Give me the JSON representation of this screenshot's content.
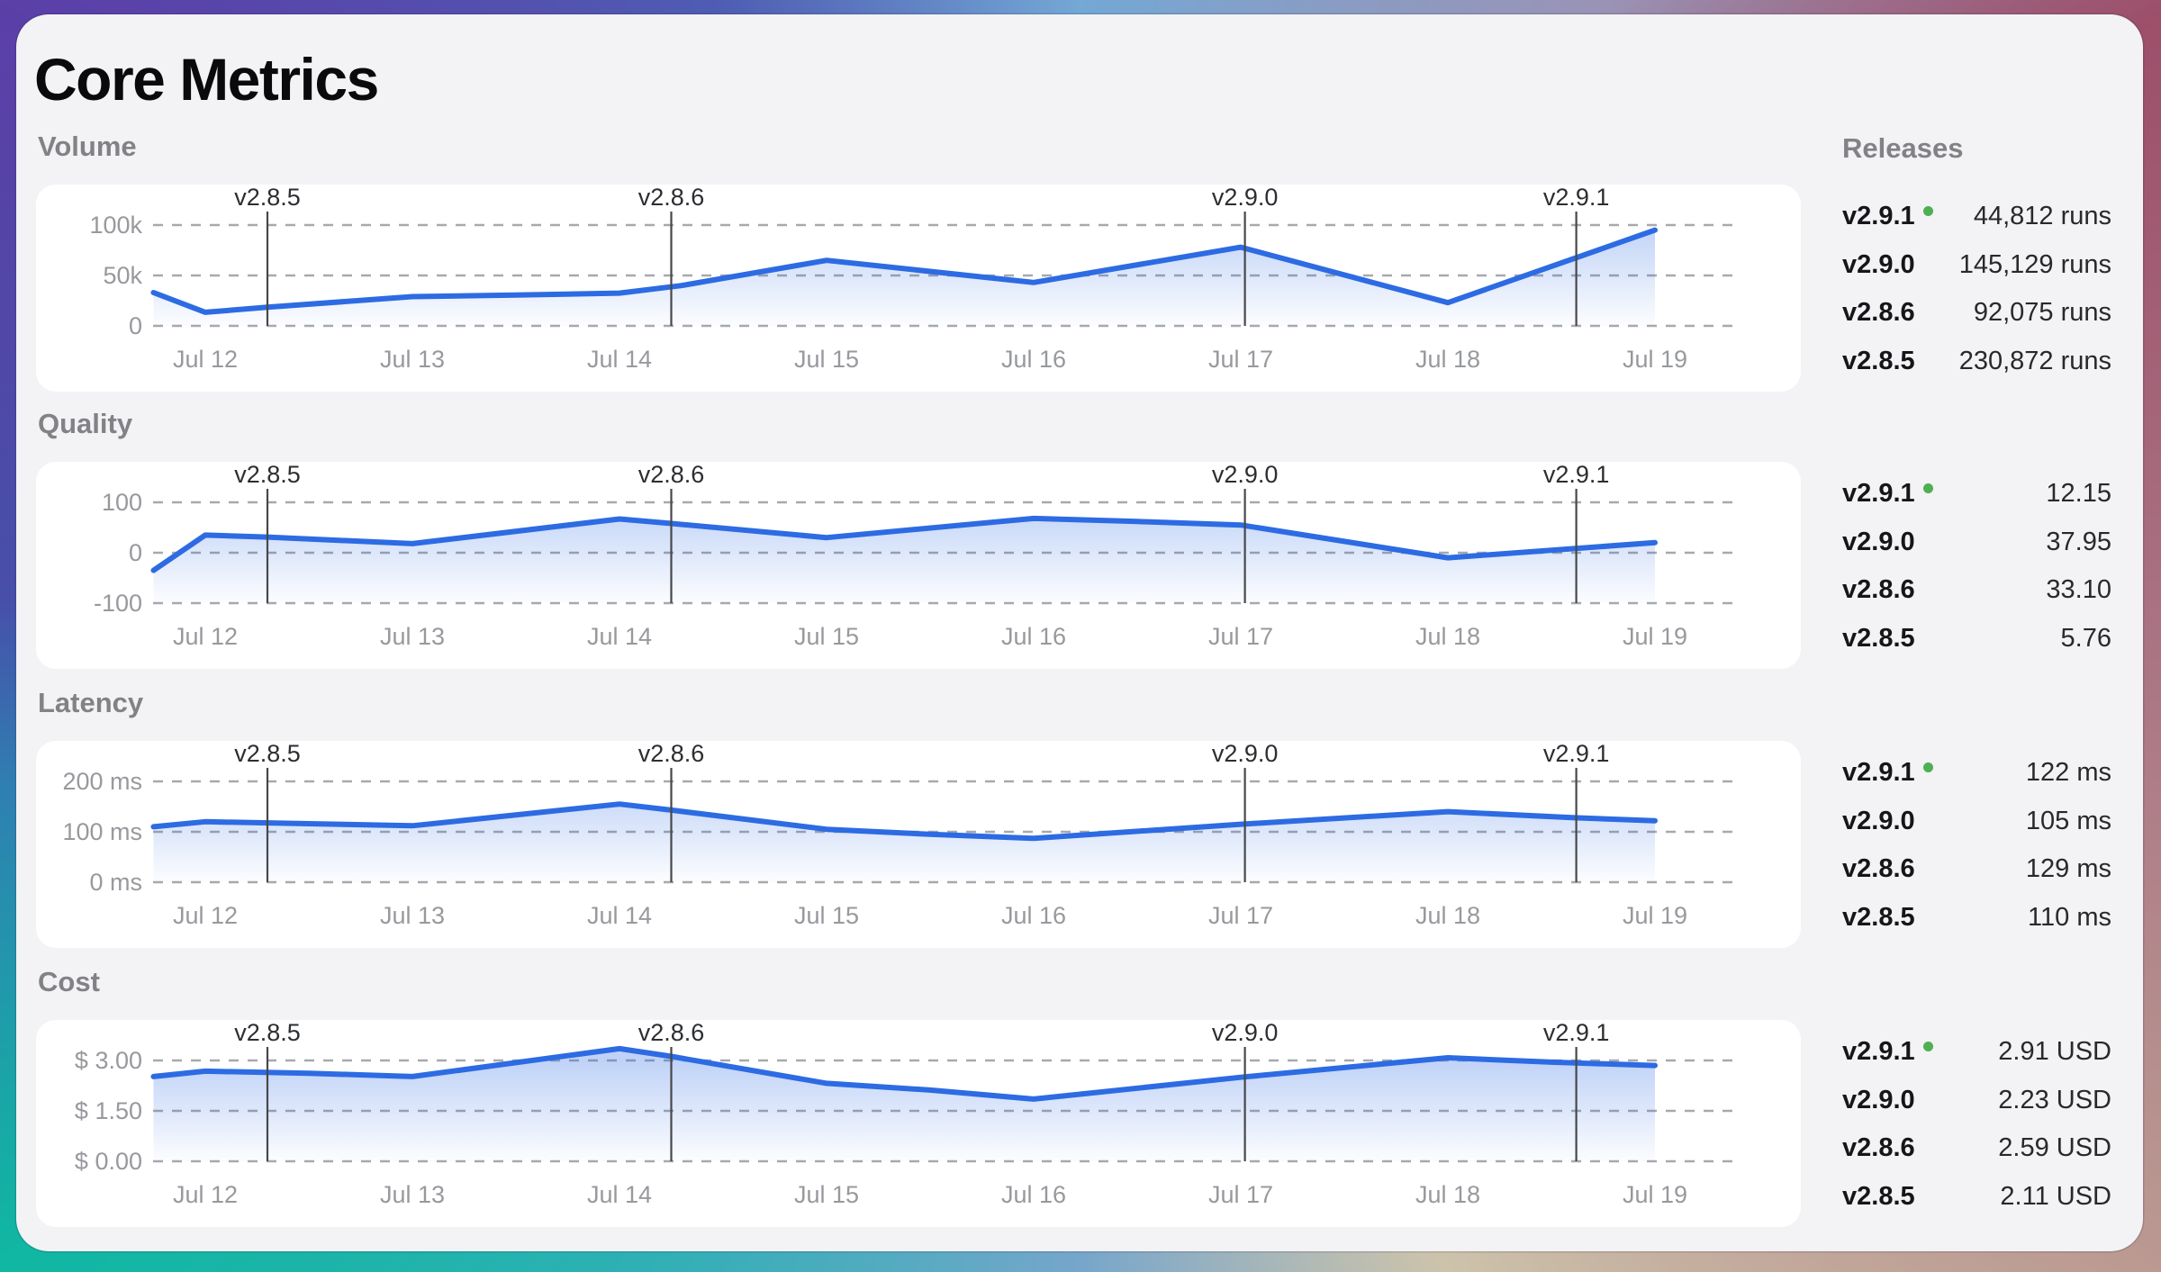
{
  "title": "Core Metrics",
  "releases_panel": {
    "header": "Releases",
    "groups": [
      {
        "metric": "Volume",
        "rows": [
          {
            "version": "v2.9.1",
            "latest": true,
            "value": "44,812 runs"
          },
          {
            "version": "v2.9.0",
            "latest": false,
            "value": "145,129 runs"
          },
          {
            "version": "v2.8.6",
            "latest": false,
            "value": "92,075 runs"
          },
          {
            "version": "v2.8.5",
            "latest": false,
            "value": "230,872 runs"
          }
        ]
      },
      {
        "metric": "Quality",
        "rows": [
          {
            "version": "v2.9.1",
            "latest": true,
            "value": "12.15"
          },
          {
            "version": "v2.9.0",
            "latest": false,
            "value": "37.95"
          },
          {
            "version": "v2.8.6",
            "latest": false,
            "value": "33.10"
          },
          {
            "version": "v2.8.5",
            "latest": false,
            "value": "5.76"
          }
        ]
      },
      {
        "metric": "Latency",
        "rows": [
          {
            "version": "v2.9.1",
            "latest": true,
            "value": "122 ms"
          },
          {
            "version": "v2.9.0",
            "latest": false,
            "value": "105 ms"
          },
          {
            "version": "v2.8.6",
            "latest": false,
            "value": "129 ms"
          },
          {
            "version": "v2.8.5",
            "latest": false,
            "value": "110 ms"
          }
        ]
      },
      {
        "metric": "Cost",
        "rows": [
          {
            "version": "v2.9.1",
            "latest": true,
            "value": "2.91 USD"
          },
          {
            "version": "v2.9.0",
            "latest": false,
            "value": "2.23 USD"
          },
          {
            "version": "v2.8.6",
            "latest": false,
            "value": "2.59 USD"
          },
          {
            "version": "v2.8.5",
            "latest": false,
            "value": "2.11 USD"
          }
        ]
      }
    ]
  },
  "release_markers": [
    {
      "label": "v2.8.5",
      "day_offset": 0.3
    },
    {
      "label": "v2.8.6",
      "day_offset": 2.25
    },
    {
      "label": "v2.9.0",
      "day_offset": 5.02
    },
    {
      "label": "v2.9.1",
      "day_offset": 6.62
    }
  ],
  "chart_data": [
    {
      "type": "area",
      "title": "Volume",
      "x_tick_labels": [
        "Jul 12",
        "Jul 13",
        "Jul 14",
        "Jul 15",
        "Jul 16",
        "Jul 17",
        "Jul 18",
        "Jul 19"
      ],
      "x": [
        -0.25,
        0,
        0.3,
        1,
        1.5,
        2,
        2.3,
        3,
        4,
        5,
        6,
        7
      ],
      "y": [
        33000,
        13500,
        18500,
        29000,
        30500,
        32500,
        40000,
        65000,
        43000,
        78000,
        23000,
        95000
      ],
      "gridlines": [
        {
          "value": 100000,
          "label": "100k"
        },
        {
          "value": 50000,
          "label": "50k"
        },
        {
          "value": 0,
          "label": "0"
        }
      ],
      "ylim": [
        0,
        100000
      ],
      "legend": "none",
      "grid": "dashed-horizontal"
    },
    {
      "type": "area",
      "title": "Quality",
      "x_tick_labels": [
        "Jul 12",
        "Jul 13",
        "Jul 14",
        "Jul 15",
        "Jul 16",
        "Jul 17",
        "Jul 18",
        "Jul 19"
      ],
      "x": [
        -0.25,
        0,
        0.3,
        1,
        2,
        2.25,
        3,
        4,
        4.5,
        5,
        6,
        7
      ],
      "y": [
        -35,
        35,
        31,
        18,
        67,
        58,
        30,
        68,
        62,
        55,
        -10,
        20
      ],
      "gridlines": [
        {
          "value": 100,
          "label": "100"
        },
        {
          "value": 0,
          "label": "0"
        },
        {
          "value": -100,
          "label": "-100"
        }
      ],
      "ylim": [
        -100,
        100
      ],
      "legend": "none",
      "grid": "dashed-horizontal"
    },
    {
      "type": "area",
      "title": "Latency",
      "x_tick_labels": [
        "Jul 12",
        "Jul 13",
        "Jul 14",
        "Jul 15",
        "Jul 16",
        "Jul 17",
        "Jul 18",
        "Jul 19"
      ],
      "x": [
        -0.25,
        0,
        0.5,
        1,
        2,
        2.25,
        3,
        3.5,
        4,
        5,
        6,
        6.6,
        7
      ],
      "y": [
        110,
        120,
        116,
        112,
        155,
        143,
        105,
        95,
        87,
        115,
        140,
        128,
        122
      ],
      "gridlines": [
        {
          "value": 200,
          "label": "200 ms"
        },
        {
          "value": 100,
          "label": "100 ms"
        },
        {
          "value": 0,
          "label": "0 ms"
        }
      ],
      "ylim": [
        0,
        200
      ],
      "legend": "none",
      "grid": "dashed-horizontal"
    },
    {
      "type": "area",
      "title": "Cost",
      "x_tick_labels": [
        "Jul 12",
        "Jul 13",
        "Jul 14",
        "Jul 15",
        "Jul 16",
        "Jul 17",
        "Jul 18",
        "Jul 19"
      ],
      "x": [
        -0.25,
        0,
        0.5,
        1,
        2,
        2.25,
        3,
        3.5,
        4,
        5,
        6,
        6.5,
        7
      ],
      "y": [
        2.52,
        2.68,
        2.62,
        2.52,
        3.35,
        3.12,
        2.32,
        2.12,
        1.85,
        2.5,
        3.08,
        2.95,
        2.85
      ],
      "gridlines": [
        {
          "value": 3.0,
          "label": "$ 3.00"
        },
        {
          "value": 1.5,
          "label": "$ 1.50"
        },
        {
          "value": 0.0,
          "label": "$ 0.00"
        }
      ],
      "ylim": [
        0,
        3.0
      ],
      "legend": "none",
      "grid": "dashed-horizontal"
    }
  ],
  "colors": {
    "line": "#2d6be3",
    "area_top": "rgba(45,107,227,0.30)",
    "area_bottom": "rgba(45,107,227,0.015)",
    "grid": "#a7a9ac",
    "axis_text": "#97999d",
    "marker_line": "#46484b",
    "marker_text": "#2c2e31",
    "latest_dot": "#4db052",
    "panel_bg": "#f3f2f4",
    "card_bg": "#ffffff",
    "section_label": "#828286",
    "title_color": "#0a0a0c",
    "version_color": "#151619",
    "value_color": "#28292c"
  }
}
